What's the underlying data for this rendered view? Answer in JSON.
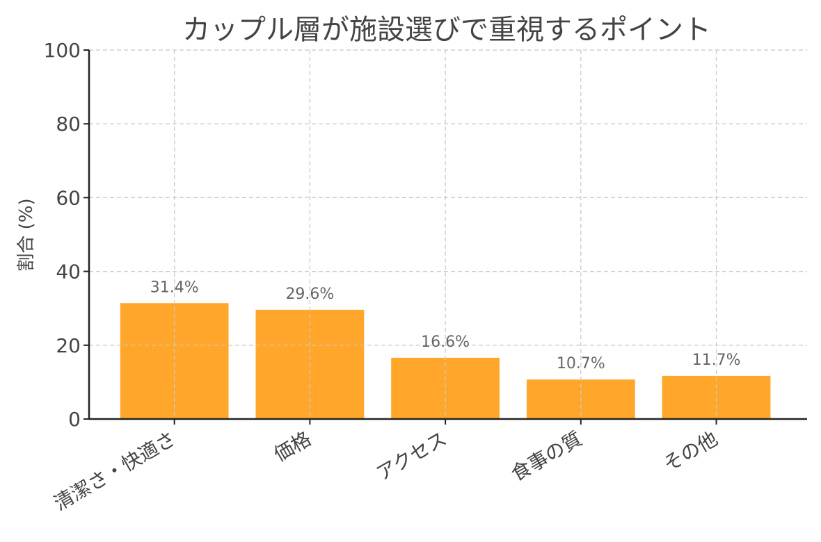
{
  "chart_data": {
    "type": "bar",
    "title": "カップル層が施設選びで重視するポイント",
    "xlabel": "",
    "ylabel": "割合 (%)",
    "categories": [
      "清潔さ・快適さ",
      "価格",
      "アクセス",
      "食事の質",
      "その他"
    ],
    "values": [
      31.4,
      29.6,
      16.6,
      10.7,
      11.7
    ],
    "data_labels": [
      "31.4%",
      "29.6%",
      "16.6%",
      "10.7%",
      "11.7%"
    ],
    "ylim": [
      0,
      100
    ],
    "yticks": [
      0,
      20,
      40,
      60,
      80,
      100
    ],
    "ytick_labels": [
      "0",
      "20",
      "40",
      "60",
      "80",
      "100"
    ],
    "grid": true,
    "legend": "none",
    "colors": {
      "bar": "#FFA62B",
      "grid": "#cccccc",
      "axis": "#222222",
      "text": "#444444",
      "data_label": "#666666"
    }
  }
}
